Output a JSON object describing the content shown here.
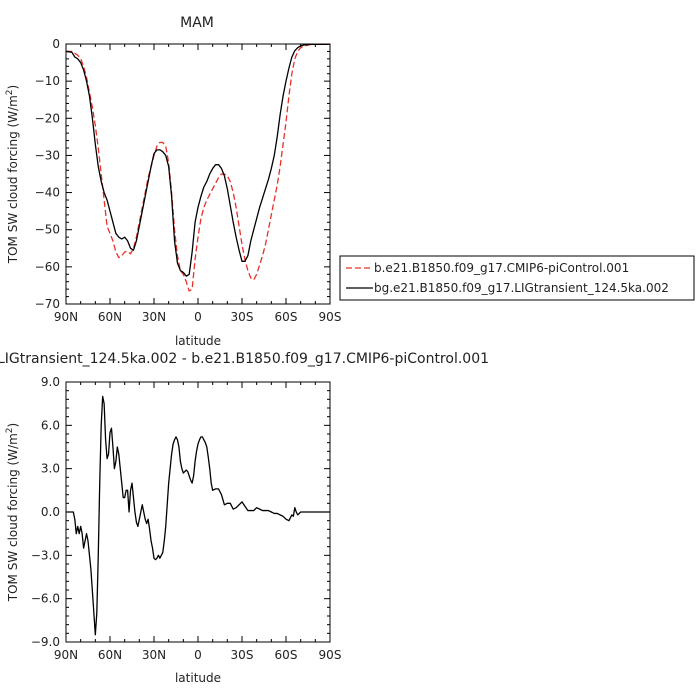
{
  "chart_data": [
    {
      "type": "line",
      "title": "MAM",
      "xlabel": "latitude",
      "ylabel": "TOM SW cloud forcing (W/m²)",
      "ylabel_main": "TOM SW cloud forcing (W/m",
      "ylabel_sup": "2",
      "ylabel_close": ")",
      "xlim": [
        -90,
        90
      ],
      "ylim": [
        -70,
        0
      ],
      "xticks": [
        -90,
        -60,
        -30,
        0,
        30,
        60,
        90
      ],
      "xtick_labels": [
        "90N",
        "60N",
        "30N",
        "0",
        "30S",
        "60S",
        "90S"
      ],
      "yticks": [
        0,
        -10,
        -20,
        -30,
        -40,
        -50,
        -60,
        -70
      ],
      "ytick_labels": [
        "0",
        "−10",
        "−20",
        "−30",
        "−40",
        "−50",
        "−60",
        "−70"
      ],
      "legend_position": "right",
      "series": [
        {
          "name": "b.e21.B1850.f09_g17.CMIP6-piControl.001",
          "color": "#e8302a",
          "dash": "dashed",
          "x": [
            -90,
            -86,
            -84,
            -82,
            -80,
            -78,
            -76,
            -74,
            -72,
            -70,
            -68,
            -66,
            -64,
            -62,
            -60,
            -58,
            -56,
            -54,
            -52,
            -50,
            -48,
            -46,
            -44,
            -42,
            -40,
            -38,
            -36,
            -34,
            -32,
            -30,
            -28,
            -26,
            -24,
            -22,
            -20,
            -18,
            -16,
            -14,
            -12,
            -10,
            -8,
            -6,
            -4,
            -2,
            0,
            2,
            4,
            6,
            8,
            10,
            12,
            14,
            16,
            18,
            20,
            22,
            24,
            26,
            28,
            30,
            32,
            34,
            36,
            38,
            40,
            42,
            44,
            46,
            48,
            50,
            52,
            54,
            56,
            58,
            60,
            62,
            64,
            66,
            68,
            70,
            72,
            74,
            76,
            78,
            80,
            82,
            84,
            86,
            88,
            90
          ],
          "y": [
            -2,
            -2,
            -2.5,
            -3,
            -4,
            -6,
            -9,
            -13,
            -17,
            -22,
            -28,
            -35,
            -42,
            -49,
            -51,
            -53,
            -56,
            -57.5,
            -57,
            -56,
            -55.8,
            -56.5,
            -55,
            -52,
            -48,
            -44,
            -40,
            -36,
            -33,
            -30,
            -27.5,
            -26.5,
            -26.5,
            -27.5,
            -32,
            -40,
            -50,
            -57,
            -61,
            -62,
            -64,
            -66.5,
            -66,
            -58,
            -52,
            -47,
            -44,
            -42,
            -40.5,
            -39,
            -37.5,
            -36,
            -35,
            -35,
            -35.5,
            -37,
            -40,
            -44,
            -49,
            -54,
            -58,
            -61,
            -63,
            -63.5,
            -62,
            -59.5,
            -57,
            -54,
            -50,
            -46,
            -42,
            -38,
            -33,
            -27,
            -21,
            -14,
            -8,
            -4,
            -2,
            -1,
            -0.6,
            -0.4,
            -0.2,
            -0.1,
            -0.1,
            -0.1,
            -0.1,
            -0.1,
            -0.1,
            0
          ]
        },
        {
          "name": "bg.e21.B1850.f09_g17.LIGtransient_124.5ka.002",
          "color": "#000000",
          "dash": "solid",
          "x": [
            -90,
            -86,
            -84,
            -82,
            -80,
            -78,
            -76,
            -74,
            -72,
            -70,
            -68,
            -66,
            -64,
            -62,
            -60,
            -58,
            -56,
            -54,
            -52,
            -50,
            -48,
            -46,
            -44,
            -42,
            -40,
            -38,
            -36,
            -34,
            -32,
            -30,
            -28,
            -26,
            -24,
            -22,
            -20,
            -18,
            -16,
            -14,
            -12,
            -10,
            -8,
            -6,
            -4,
            -2,
            0,
            2,
            4,
            6,
            8,
            10,
            12,
            14,
            16,
            18,
            20,
            22,
            24,
            26,
            28,
            30,
            32,
            34,
            36,
            38,
            40,
            42,
            44,
            46,
            48,
            50,
            52,
            54,
            56,
            58,
            60,
            62,
            64,
            66,
            68,
            70,
            72,
            74,
            76,
            78,
            80,
            82,
            84,
            86,
            88,
            90
          ],
          "y": [
            -2,
            -2.2,
            -3.5,
            -4,
            -5,
            -7,
            -10,
            -14,
            -20,
            -27,
            -33,
            -37,
            -40,
            -42,
            -45,
            -48,
            -51,
            -52,
            -52.5,
            -52,
            -53,
            -55,
            -55.5,
            -53,
            -49,
            -45,
            -41,
            -37,
            -33,
            -29.5,
            -28.5,
            -28.5,
            -29,
            -30,
            -33,
            -41,
            -53,
            -59,
            -61,
            -61.5,
            -62.5,
            -62,
            -56,
            -48,
            -44,
            -41,
            -38.5,
            -37,
            -35,
            -33.5,
            -32.5,
            -32.5,
            -33.5,
            -35.5,
            -39,
            -43.5,
            -48,
            -52,
            -55.5,
            -58.5,
            -58.5,
            -57,
            -53,
            -50,
            -47,
            -44,
            -41.5,
            -39,
            -36.5,
            -33.5,
            -30,
            -25,
            -19,
            -14,
            -10,
            -6.5,
            -3.5,
            -1.8,
            -1,
            -0.5,
            -0.3,
            -0.2,
            -0.1,
            -0.1,
            -0.1,
            -0.1,
            -0.1,
            -0.1,
            -0.1,
            0
          ]
        }
      ]
    },
    {
      "type": "line",
      "title": "LIGtransient_124.5ka.002 - b.e21.B1850.f09_g17.CMIP6-piControl.001",
      "xlabel": "latitude",
      "ylabel": "TOM SW cloud forcing (W/m²)",
      "ylabel_main": "TOM SW cloud forcing (W/m",
      "ylabel_sup": "2",
      "ylabel_close": ")",
      "xlim": [
        -90,
        90
      ],
      "ylim": [
        -9,
        9
      ],
      "xticks": [
        -90,
        -60,
        -30,
        0,
        30,
        60,
        90
      ],
      "xtick_labels": [
        "90N",
        "60N",
        "30N",
        "0",
        "30S",
        "60S",
        "90S"
      ],
      "yticks": [
        9,
        6,
        3,
        0,
        -3,
        -6,
        -9
      ],
      "ytick_labels": [
        "9.0",
        "6.0",
        "3.0",
        "0.0",
        "−3.0",
        "−6.0",
        "−9.0"
      ],
      "series": [
        {
          "color": "#000000",
          "dash": "solid",
          "x": [
            -90,
            -86,
            -85,
            -84,
            -83,
            -82,
            -81,
            -80,
            -79,
            -78,
            -77,
            -76,
            -75,
            -74,
            -73,
            -72,
            -71,
            -70,
            -69,
            -68,
            -67,
            -66,
            -65,
            -64,
            -63,
            -62,
            -61,
            -60,
            -59,
            -58,
            -57,
            -56,
            -55,
            -54,
            -53,
            -52,
            -51,
            -50,
            -49,
            -48,
            -47,
            -46,
            -45,
            -44,
            -43,
            -42,
            -41,
            -40,
            -39,
            -38,
            -37,
            -36,
            -35,
            -34,
            -33,
            -32,
            -31,
            -30,
            -29,
            -28,
            -27,
            -26,
            -25,
            -24,
            -23,
            -22,
            -21,
            -20,
            -19,
            -18,
            -17,
            -16,
            -15,
            -14,
            -13,
            -12,
            -11,
            -10,
            -9,
            -8,
            -7,
            -6,
            -5,
            -4,
            -3,
            -2,
            -1,
            0,
            1,
            2,
            3,
            4,
            5,
            6,
            7,
            8,
            9,
            10,
            12,
            14,
            16,
            18,
            20,
            22,
            24,
            26,
            28,
            30,
            32,
            34,
            36,
            38,
            40,
            42,
            44,
            46,
            48,
            50,
            52,
            54,
            56,
            58,
            60,
            62,
            64,
            65,
            66,
            67,
            68,
            69,
            70,
            71,
            72,
            73,
            74,
            75,
            76,
            78,
            80,
            82,
            84,
            86,
            88,
            90
          ],
          "y": [
            0,
            0,
            0,
            -0.5,
            -1.5,
            -1,
            -1.5,
            -1,
            -1.5,
            -2.5,
            -2,
            -1.5,
            -2,
            -3,
            -4,
            -5.5,
            -7,
            -8.5,
            -7,
            -3,
            2,
            6,
            8,
            7.5,
            5,
            3.7,
            4,
            5.5,
            5.8,
            4.5,
            3,
            3.5,
            4.5,
            4,
            3,
            2,
            1,
            1,
            1.5,
            1.5,
            0,
            1.5,
            2,
            1,
            0,
            -0.7,
            -1,
            -0.5,
            0,
            0.5,
            0,
            -0.5,
            -0.8,
            -0.5,
            -1.2,
            -2,
            -2.5,
            -3.2,
            -3.3,
            -3.2,
            -3,
            -3.2,
            -3,
            -2.8,
            -2,
            -1,
            0.5,
            2,
            3,
            4,
            4.7,
            5,
            5.2,
            5,
            4.5,
            3.5,
            3,
            2.7,
            2.8,
            2.9,
            2.8,
            2.5,
            2.2,
            2,
            2.5,
            3.5,
            4.2,
            4.7,
            5,
            5.2,
            5.2,
            5,
            4.8,
            4.5,
            3.8,
            3,
            2,
            1.5,
            1.6,
            1.6,
            1.2,
            0.5,
            0.6,
            0.6,
            0.2,
            0.3,
            0.5,
            0.7,
            0.4,
            0.1,
            0.1,
            0.1,
            0.3,
            0.2,
            0.1,
            0.1,
            0.1,
            0,
            -0.1,
            -0.1,
            -0.2,
            -0.3,
            -0.5,
            -0.6,
            -0.2,
            -0.3,
            0.3,
            0,
            -0.2,
            -0.1,
            0,
            0,
            0,
            0,
            0,
            0,
            0,
            0,
            0,
            0,
            0,
            0,
            0,
            0
          ]
        }
      ]
    }
  ]
}
